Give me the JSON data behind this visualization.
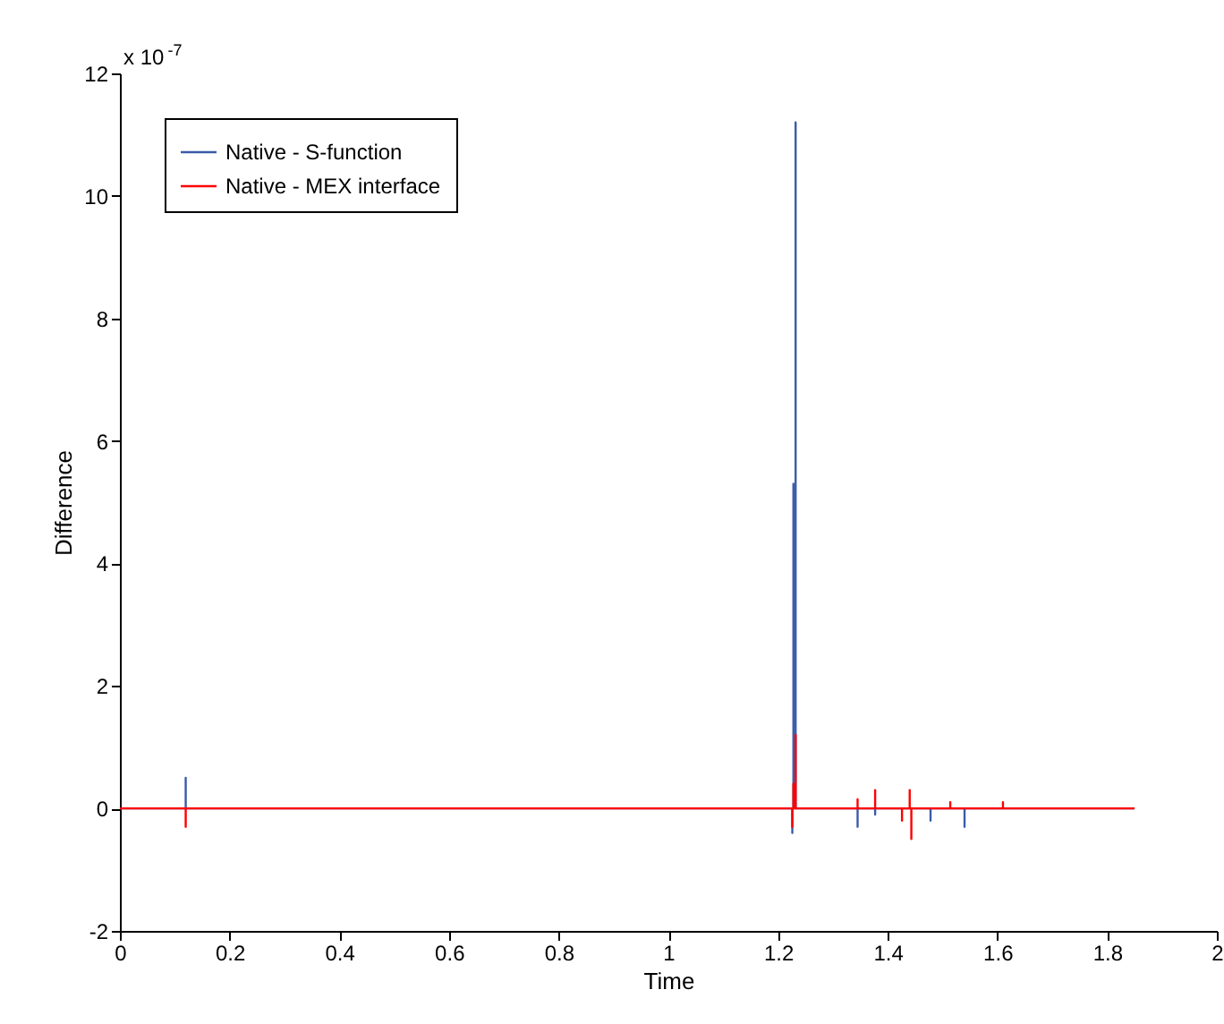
{
  "chart_data": {
    "type": "line",
    "xlabel": "Time",
    "ylabel": "Difference",
    "annotations": [
      "x 10$^{-7}$"
    ],
    "xlim": [
      0,
      2
    ],
    "xticks": [
      0,
      0.2,
      0.4,
      0.6,
      0.8,
      1,
      1.2,
      1.4,
      1.6,
      1.8,
      2
    ],
    "ylim": [
      -2,
      12
    ],
    "yticks": [
      -2,
      0,
      2,
      4,
      6,
      8,
      10,
      12
    ],
    "grid": false,
    "legend": "top left",
    "series": [
      {
        "name": "Native - S-function",
        "color": "#3b5ba8",
        "x": [
          0,
          0.12,
          0.12,
          0.12,
          1.226,
          1.226,
          1.226,
          1.228,
          1.228,
          1.228,
          1.232,
          1.232,
          1.232,
          1.345,
          1.345,
          1.345,
          1.377,
          1.377,
          1.377,
          1.478,
          1.478,
          1.478,
          1.54,
          1.54,
          1.54,
          1.85
        ],
        "values": [
          0,
          0,
          0.5,
          0,
          0,
          -0.4,
          0,
          0,
          5.3,
          0,
          0,
          11.2,
          0,
          0,
          -0.3,
          0,
          0,
          -0.1,
          0,
          0,
          -0.2,
          0,
          0,
          -0.3,
          0,
          0
        ]
      },
      {
        "name": "Native - MEX interface",
        "color": "#ff0000",
        "x": [
          0,
          0.12,
          0.12,
          0.12,
          1.226,
          1.226,
          1.226,
          1.228,
          1.228,
          1.228,
          1.232,
          1.232,
          1.232,
          1.345,
          1.345,
          1.345,
          1.377,
          1.377,
          1.377,
          1.426,
          1.426,
          1.426,
          1.44,
          1.44,
          1.44,
          1.443,
          1.443,
          1.443,
          1.514,
          1.514,
          1.514,
          1.61,
          1.61,
          1.61,
          1.85
        ],
        "values": [
          0,
          0,
          -0.3,
          0,
          0,
          -0.3,
          0,
          0,
          0.4,
          0,
          0,
          1.2,
          0,
          0,
          0.15,
          0,
          0,
          0.3,
          0,
          0,
          -0.2,
          0,
          0,
          0.3,
          0,
          0,
          -0.5,
          0,
          0,
          0.1,
          0,
          0,
          0.1,
          0,
          0
        ]
      }
    ]
  }
}
